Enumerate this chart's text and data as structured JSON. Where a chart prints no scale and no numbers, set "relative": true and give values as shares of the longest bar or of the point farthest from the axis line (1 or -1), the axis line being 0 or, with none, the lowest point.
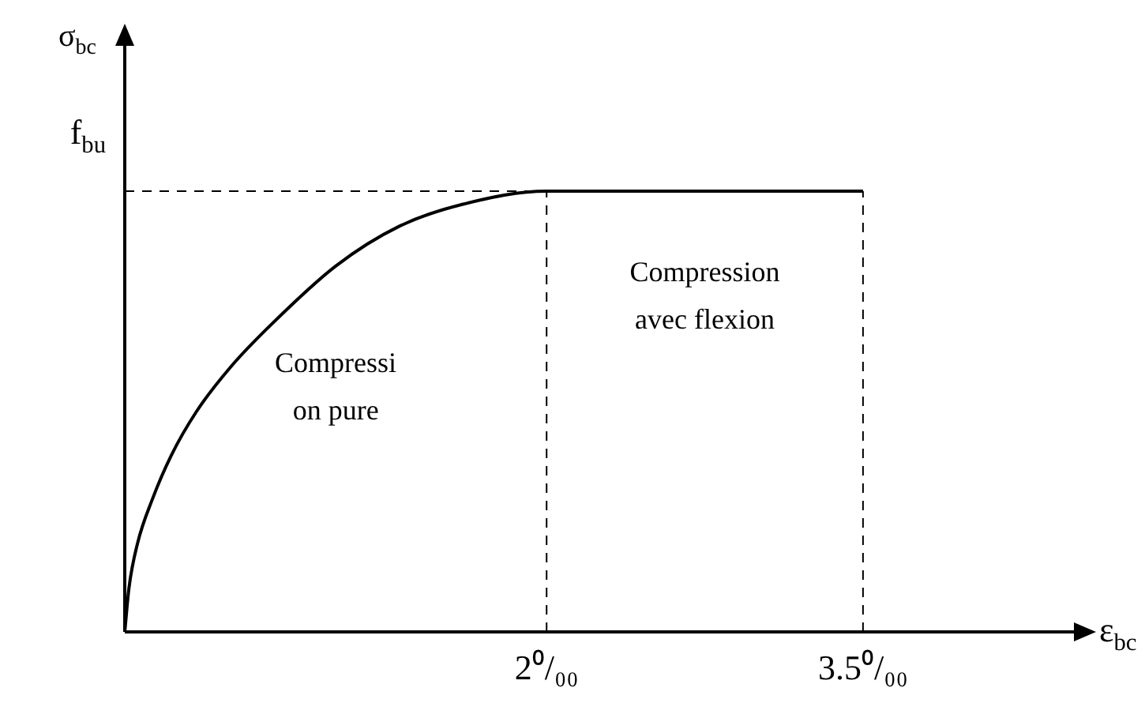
{
  "chart_data": {
    "type": "line",
    "relative": true,
    "xlabel": "ε$_{bc}$",
    "ylabel": "σ$_{bc}$",
    "xlim": [
      0,
      4.5
    ],
    "xticks": [
      {
        "value": 2,
        "label": "2⁰/₀₀"
      },
      {
        "value": 3.5,
        "label": "3.5⁰/₀₀"
      }
    ],
    "series": [
      {
        "color": "#000000",
        "x": [
          0,
          0.02,
          0.06,
          0.13,
          0.22,
          0.34,
          0.5,
          0.7,
          1,
          1.3,
          1.6,
          2,
          3.5
        ],
        "values": [
          0,
          0.1,
          0.2,
          0.3,
          0.4,
          0.5,
          0.6,
          0.7,
          0.83,
          0.92,
          0.97,
          1,
          1
        ]
      }
    ],
    "ref_lines": [
      {
        "axis": "y",
        "value": 1,
        "label": "f$_{bu}$",
        "line_style": "dashed",
        "color": "#000000"
      },
      {
        "axis": "x",
        "value": 2,
        "line_style": "dashed",
        "color": "#000000"
      },
      {
        "axis": "x",
        "value": 3.5,
        "line_style": "dashed",
        "color": "#000000"
      }
    ],
    "annotations": [
      "Compressi\non pure",
      "Compression\navec flexion"
    ],
    "grid": false,
    "legend": false,
    "marker": "none",
    "line_style": "solid"
  }
}
